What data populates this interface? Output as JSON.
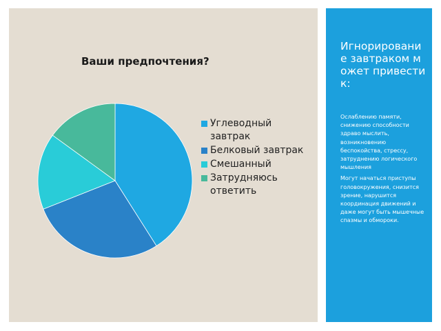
{
  "slide": {
    "left_panel_color": "#e4ddd2",
    "right_panel_color": "#1ca0dd"
  },
  "chart_data": {
    "type": "pie",
    "title": "Ваши предпочтения?",
    "categories": [
      "Углеводный завтрак",
      "Белковый завтрак",
      "Смешанный",
      "Затрудняюсь ответить"
    ],
    "values": [
      41,
      28,
      16,
      15
    ],
    "colors": [
      "#1fa8e2",
      "#2a82c8",
      "#29ccd8",
      "#48b99b"
    ],
    "start_angle_deg": 0,
    "direction": "clockwise",
    "legend_position": "right"
  },
  "sidebar": {
    "heading": "Игнорирование завтраком может привести к:",
    "paragraphs": [
      "Ослаблению памяти, снижению способности здраво мыслить, возникновению беспокойства, стрессу, затруднению логического мышления",
      "Могут начаться приступы головокружения, снизится зрение, нарушится координация движений и даже могут быть мышечные спазмы и обмороки."
    ]
  }
}
